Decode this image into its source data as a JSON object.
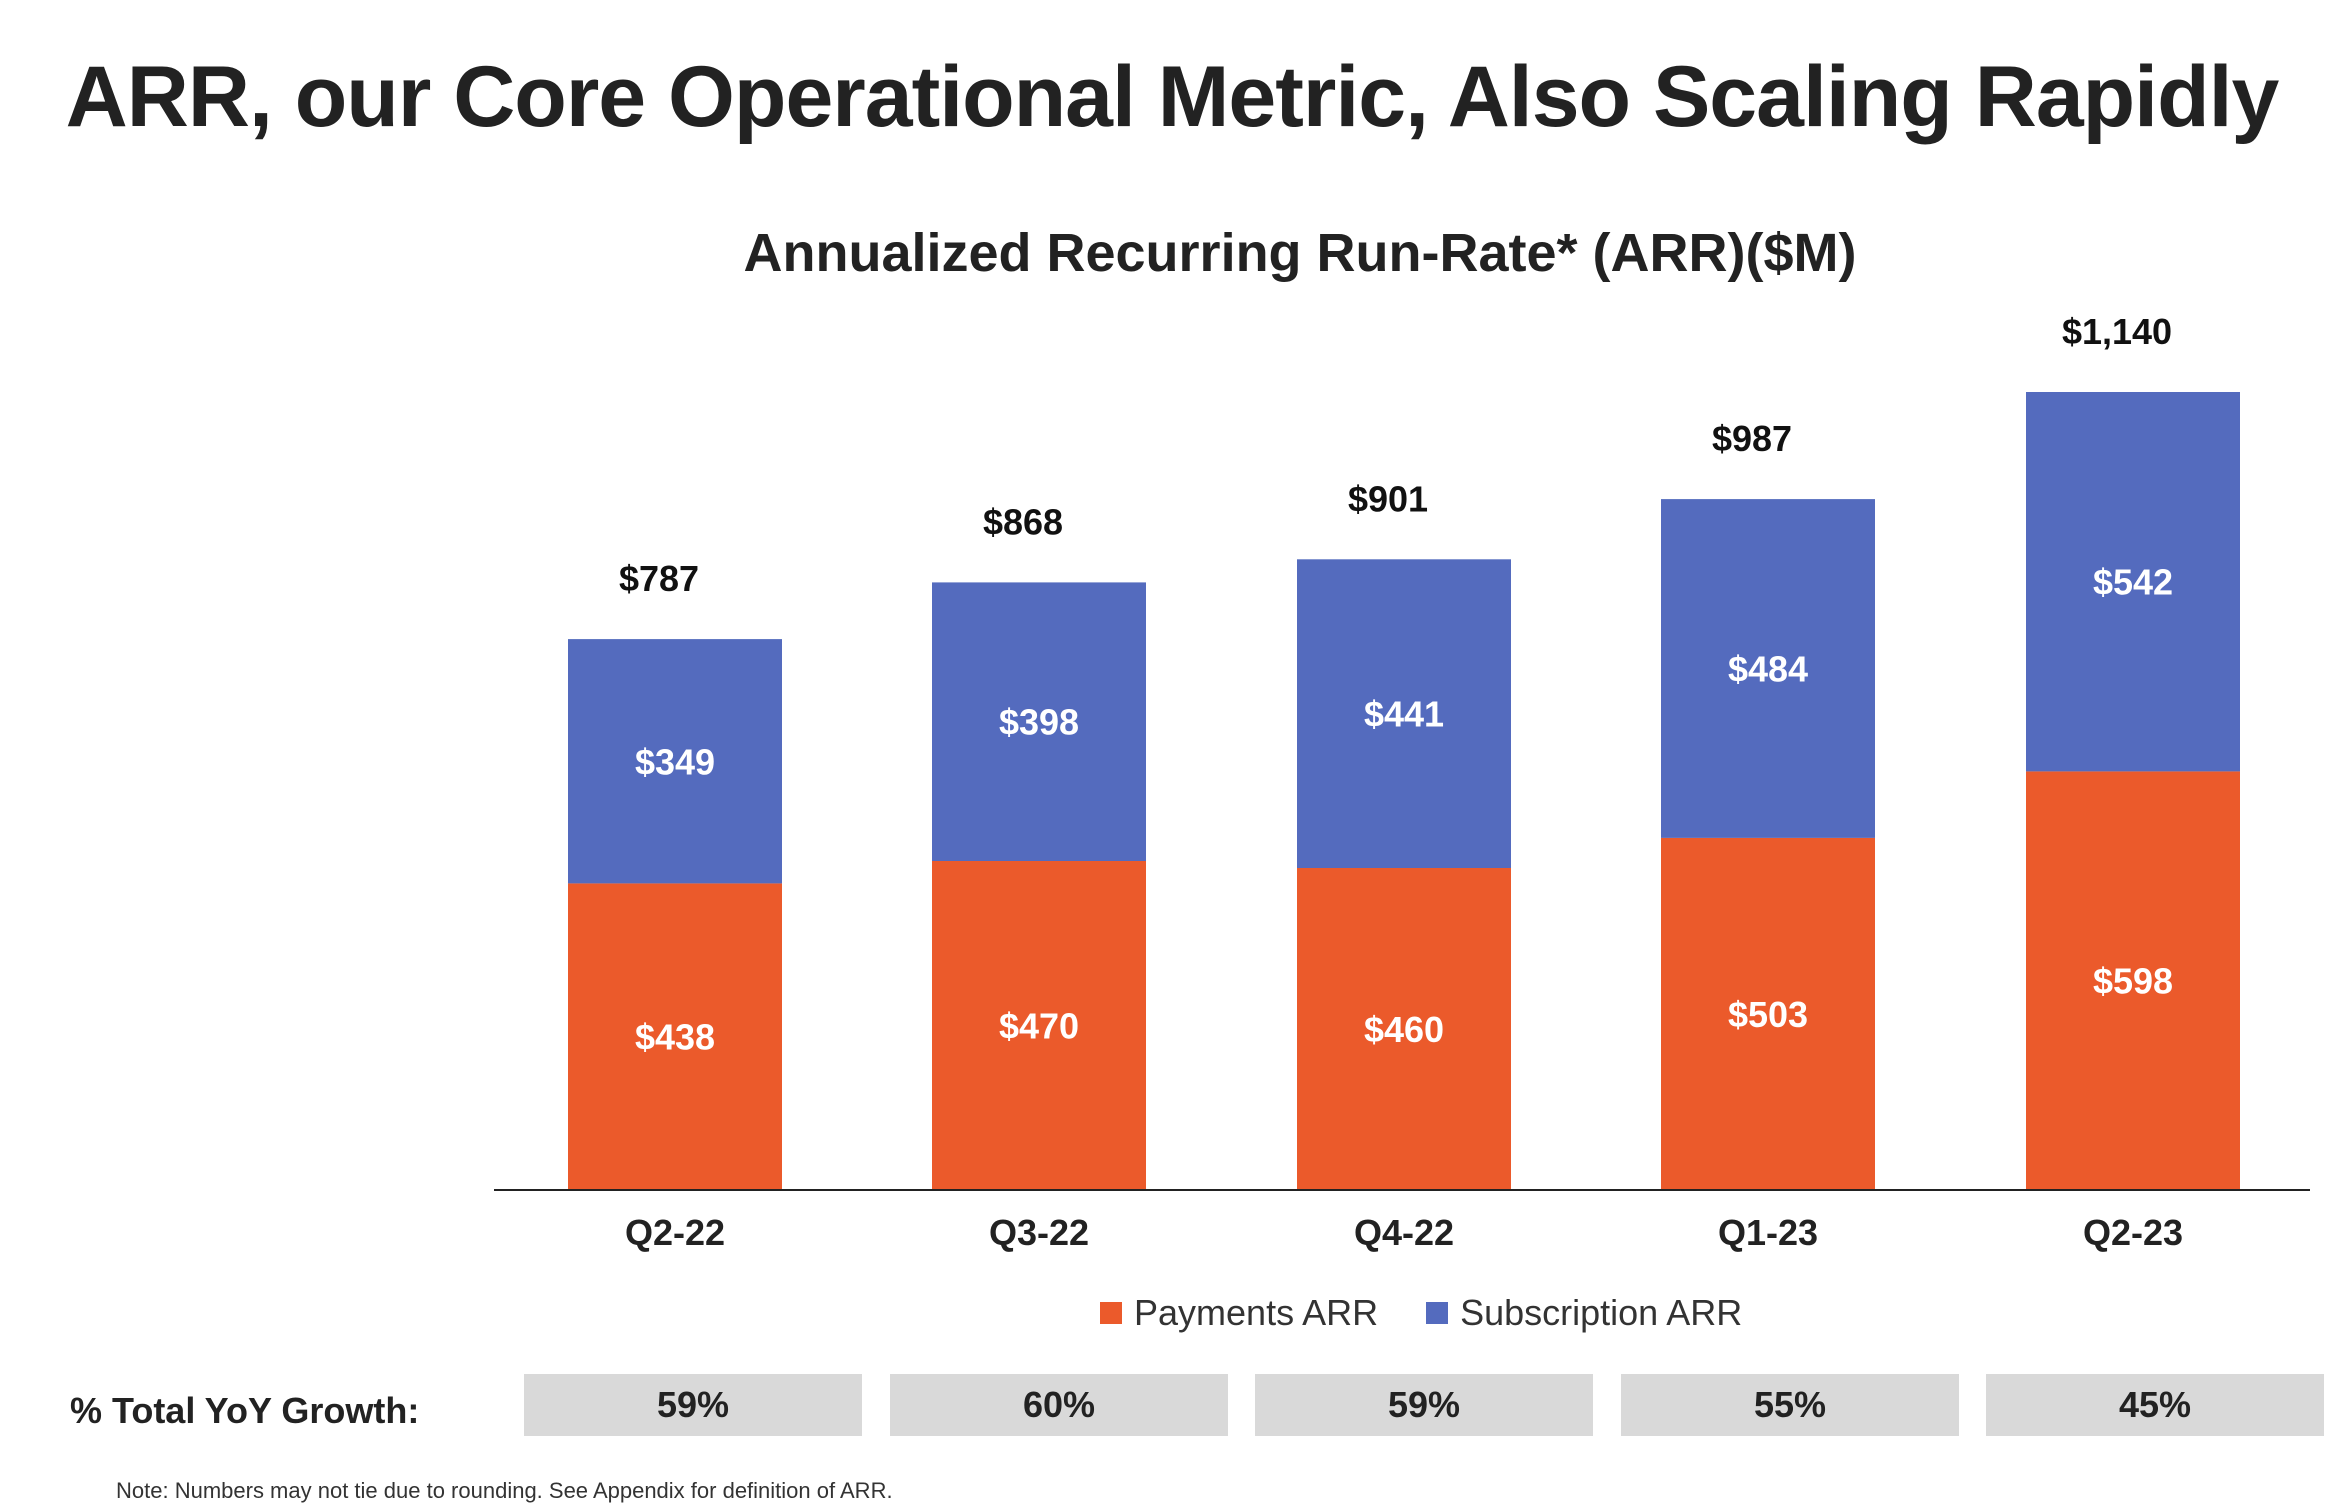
{
  "title": "ARR, our Core Operational Metric, Also Scaling Rapidly",
  "colors": {
    "payments": "#EB5A2B",
    "subscription": "#546BBE",
    "axis": "#222222",
    "growth_cell": "#D9D9D9"
  },
  "chart_data": {
    "type": "bar",
    "stacked": true,
    "title": "Annualized Recurring Run-Rate* (ARR)($M)",
    "categories": [
      "Q2-22",
      "Q3-22",
      "Q4-22",
      "Q1-23",
      "Q2-23"
    ],
    "series": [
      {
        "name": "Payments ARR",
        "values": [
          438,
          470,
          460,
          503,
          598
        ],
        "labels": [
          "$438",
          "$470",
          "$460",
          "$503",
          "$598"
        ]
      },
      {
        "name": "Subscription ARR",
        "values": [
          349,
          398,
          441,
          484,
          542
        ],
        "labels": [
          "$349",
          "$398",
          "$441",
          "$484",
          "$542"
        ]
      }
    ],
    "totals": [
      787,
      868,
      901,
      987,
      1140
    ],
    "total_labels": [
      "$787",
      "$868",
      "$901",
      "$987",
      "$1,140"
    ],
    "ylim": [
      0,
      1200
    ],
    "legend_position": "bottom-center",
    "grid": false
  },
  "growth": {
    "label": "% Total YoY Growth:",
    "values": [
      "59%",
      "60%",
      "59%",
      "55%",
      "45%"
    ]
  },
  "footnote": "Note: Numbers may not tie due to rounding. See Appendix for definition of ARR."
}
